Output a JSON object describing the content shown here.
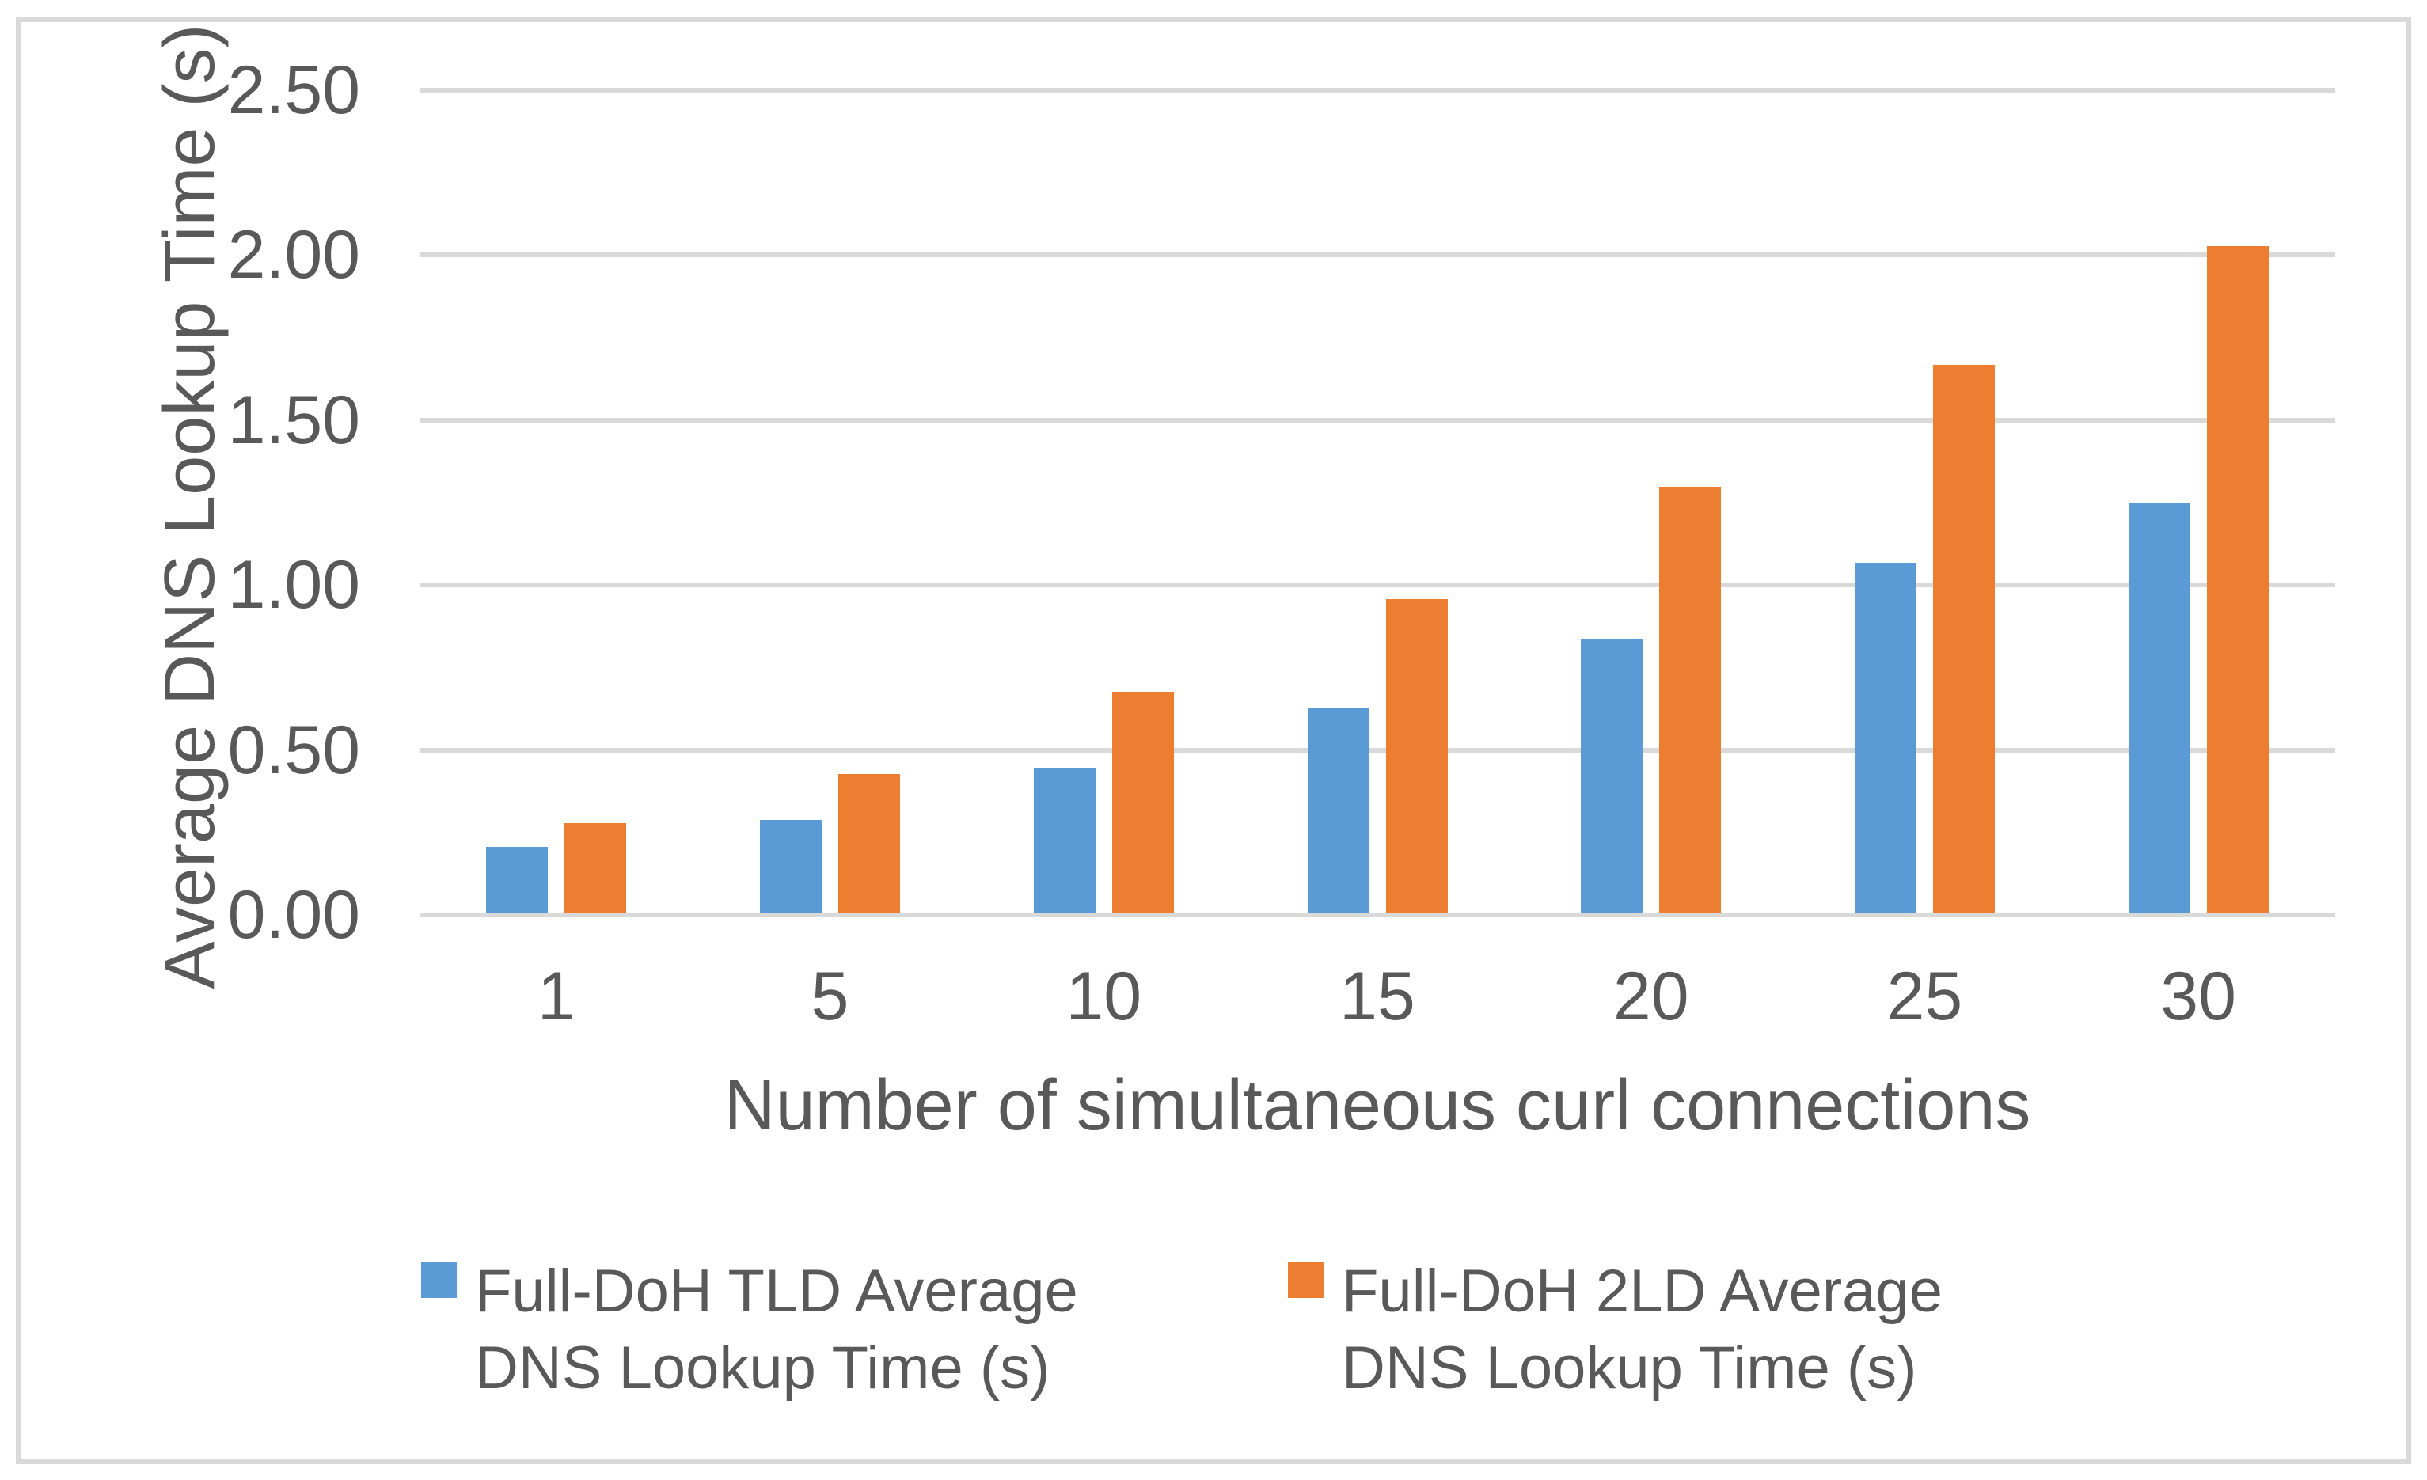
{
  "chart_data": {
    "type": "bar",
    "title": "",
    "categories": [
      "1",
      "5",
      "10",
      "15",
      "20",
      "25",
      "30"
    ],
    "series": [
      {
        "name": "Full-DoH TLD Average DNS Lookup Time (s)",
        "color": "#5B9BD5",
        "values": [
          0.2,
          0.28,
          0.44,
          0.62,
          0.83,
          1.06,
          1.24
        ]
      },
      {
        "name": "Full-DoH 2LD Average DNS Lookup Time (s)",
        "color": "#ED7D31",
        "values": [
          0.27,
          0.42,
          0.67,
          0.95,
          1.29,
          1.66,
          2.02
        ]
      }
    ],
    "xlabel": "Number of simultaneous curl connections",
    "ylabel": "Average DNS Lookup Time (s)",
    "ylim": [
      0,
      2.5
    ],
    "ytick_step": 0.5,
    "ytick_labels": [
      "0.00",
      "0.50",
      "1.00",
      "1.50",
      "2.00",
      "2.50"
    ],
    "grid": true,
    "legend_position": "bottom"
  },
  "colors": {
    "grid": "#D9D9D9",
    "axis_text": "#595959",
    "chart_border": "#D9D9D9",
    "background": "#FFFFFF"
  }
}
